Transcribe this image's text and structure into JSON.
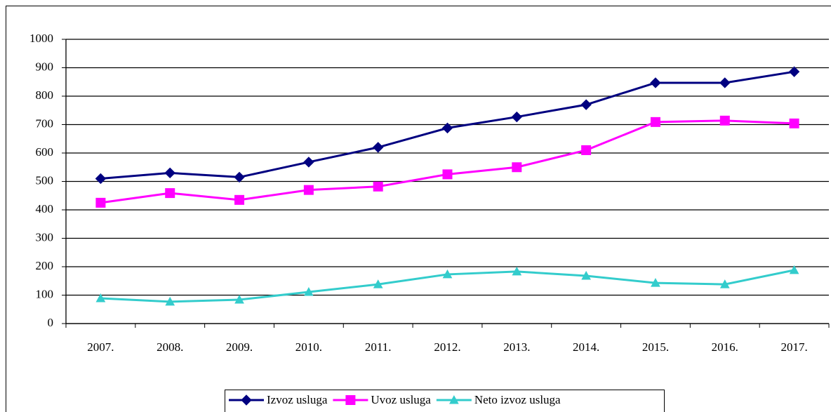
{
  "chart_data": {
    "type": "line",
    "categories": [
      "2007.",
      "2008.",
      "2009.",
      "2010.",
      "2011.",
      "2012.",
      "2013.",
      "2014.",
      "2015.",
      "2016.",
      "2017."
    ],
    "series": [
      {
        "name": "Izvoz usluga",
        "color": "#000080",
        "marker": "diamond",
        "values": [
          510,
          530,
          515,
          568,
          620,
          688,
          727,
          770,
          847,
          847,
          886
        ]
      },
      {
        "name": "Uvoz usluga",
        "color": "#ff00ff",
        "marker": "square",
        "values": [
          425,
          459,
          435,
          470,
          482,
          525,
          550,
          610,
          709,
          714,
          704
        ]
      },
      {
        "name": "Neto izvoz usluga",
        "color": "#33cccc",
        "marker": "triangle",
        "values": [
          89,
          77,
          84,
          111,
          138,
          173,
          183,
          168,
          143,
          138,
          188
        ]
      }
    ],
    "ylim": [
      0,
      1000
    ],
    "yticks": [
      0,
      100,
      200,
      300,
      400,
      500,
      600,
      700,
      800,
      900,
      1000
    ],
    "grid": true,
    "legend": "bottom"
  }
}
